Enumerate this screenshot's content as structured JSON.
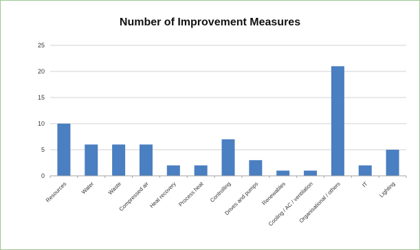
{
  "chart_data": {
    "type": "bar",
    "title": "Number of Improvement Measures",
    "xlabel": "",
    "ylabel": "",
    "categories": [
      "Resources",
      "Water",
      "Waste",
      "Compressed air",
      "Heat recovery",
      "Process heat",
      "Controlling",
      "Drives and pumps",
      "Renewables",
      "Cooling / AC / ventilation",
      "Organisational / others",
      "IT",
      "Lighting"
    ],
    "values": [
      10,
      6,
      6,
      6,
      2,
      2,
      7,
      3,
      1,
      1,
      21,
      2,
      5
    ],
    "ylim": [
      0,
      25
    ],
    "yticks": [
      0,
      5,
      10,
      15,
      20,
      25
    ],
    "grid": true,
    "legend": "none",
    "bar_color": "#4a7fc1",
    "grid_color": "#d0d0d0"
  }
}
